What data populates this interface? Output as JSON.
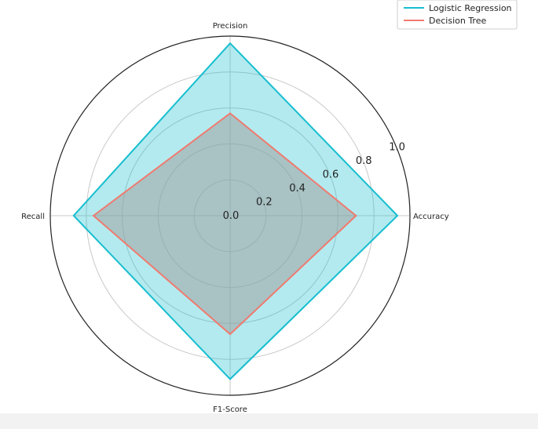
{
  "chart_data": {
    "type": "radar",
    "axes": [
      "Accuracy",
      "Precision",
      "Recall",
      "F1-Score"
    ],
    "rlim": [
      0,
      1.0
    ],
    "radial_ticks": [
      0.0,
      0.2,
      0.4,
      0.6,
      0.8,
      1.0
    ],
    "radial_tick_labels": [
      "0.0",
      "0.2",
      "0.4",
      "0.6",
      "0.8",
      "1.0"
    ],
    "grid": true,
    "legend_position": "top-right",
    "series": [
      {
        "name": "Logistic Regression",
        "values": [
          0.93,
          0.96,
          0.87,
          0.91
        ],
        "color": "#17becf",
        "fill_color": "#17becf",
        "fill_opacity": 0.33
      },
      {
        "name": "Decision Tree",
        "values": [
          0.7,
          0.57,
          0.76,
          0.66
        ],
        "color": "#f07a6e",
        "fill_color": "#a0a0a0",
        "fill_opacity": 0.55
      }
    ]
  }
}
